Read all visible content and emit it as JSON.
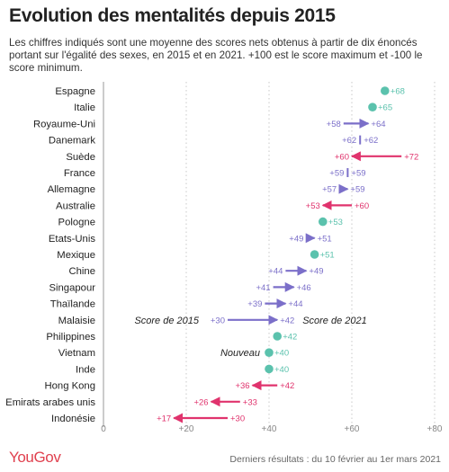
{
  "title": "Evolution des mentalités depuis 2015",
  "subtitle": "Les chiffres indiqués sont une moyenne des scores nets obtenus à partir de dix énoncés portant sur l'égalité des sexes, en 2015 et en 2021. +100 est le score maximum et -100 le score minimum.",
  "logo_text": "YouGov",
  "footer": "Derniers résultats : du 10 février au 1er mars 2021",
  "colors": {
    "improved": "#7b6fc9",
    "worsened": "#e0336d",
    "single": "#5bc2ad",
    "axis": "#999999",
    "grid": "#c8c8c8"
  },
  "chart_data": {
    "type": "dumbbell",
    "xlim": [
      0,
      80
    ],
    "x_ticks": [
      "0",
      "+20",
      "+40",
      "+60",
      "+80"
    ],
    "x_tick_values": [
      0,
      20,
      40,
      60,
      80
    ],
    "grid": "vertical-dotted",
    "rows": [
      {
        "country": "Espagne",
        "v2015": null,
        "v2021": 68,
        "label_2015": "",
        "label_2021": "+68"
      },
      {
        "country": "Italie",
        "v2015": null,
        "v2021": 65,
        "label_2015": "",
        "label_2021": "+65"
      },
      {
        "country": "Royaume-Uni",
        "v2015": 58,
        "v2021": 64,
        "label_2015": "+58",
        "label_2021": "+64"
      },
      {
        "country": "Danemark",
        "v2015": 62,
        "v2021": 62,
        "label_2015": "+62",
        "label_2021": "+62"
      },
      {
        "country": "Suède",
        "v2015": 72,
        "v2021": 60,
        "label_2015": "+72",
        "label_2021": "+60"
      },
      {
        "country": "France",
        "v2015": 59,
        "v2021": 59,
        "label_2015": "+59",
        "label_2021": "+59"
      },
      {
        "country": "Allemagne",
        "v2015": 57,
        "v2021": 59,
        "label_2015": "+57",
        "label_2021": "+59"
      },
      {
        "country": "Australie",
        "v2015": 60,
        "v2021": 53,
        "label_2015": "+60",
        "label_2021": "+53"
      },
      {
        "country": "Pologne",
        "v2015": null,
        "v2021": 53,
        "label_2015": "",
        "label_2021": "+53"
      },
      {
        "country": "Etats-Unis",
        "v2015": 49,
        "v2021": 51,
        "label_2015": "+49",
        "label_2021": "+51"
      },
      {
        "country": "Mexique",
        "v2015": null,
        "v2021": 51,
        "label_2015": "",
        "label_2021": "+51"
      },
      {
        "country": "Chine",
        "v2015": 44,
        "v2021": 49,
        "label_2015": "+44",
        "label_2021": "+49"
      },
      {
        "country": "Singapour",
        "v2015": 41,
        "v2021": 46,
        "label_2015": "+41",
        "label_2021": "+46"
      },
      {
        "country": "Thaïlande",
        "v2015": 39,
        "v2021": 44,
        "label_2015": "+39",
        "label_2021": "+44"
      },
      {
        "country": "Malaisie",
        "v2015": 30,
        "v2021": 42,
        "label_2015": "+30",
        "label_2021": "+42"
      },
      {
        "country": "Philippines",
        "v2015": null,
        "v2021": 42,
        "label_2015": "",
        "label_2021": "+42"
      },
      {
        "country": "Vietnam",
        "v2015": null,
        "v2021": 40,
        "label_2015": "",
        "label_2021": "+40"
      },
      {
        "country": "Inde",
        "v2015": null,
        "v2021": 40,
        "label_2015": "",
        "label_2021": "+40"
      },
      {
        "country": "Hong Kong",
        "v2015": 42,
        "v2021": 36,
        "label_2015": "+42",
        "label_2021": "+36"
      },
      {
        "country": "Emirats arabes unis",
        "v2015": 33,
        "v2021": 26,
        "label_2015": "+33",
        "label_2021": "+26"
      },
      {
        "country": "Indonésie",
        "v2015": 30,
        "v2021": 17,
        "label_2015": "+30",
        "label_2021": "+17"
      }
    ],
    "annotations": [
      {
        "row": "Malaisie",
        "side": "start",
        "text": "Score de 2015"
      },
      {
        "row": "Malaisie",
        "side": "end",
        "text": "Score de 2021"
      },
      {
        "row": "Vietnam",
        "side": "start",
        "text": "Nouveau"
      }
    ]
  }
}
